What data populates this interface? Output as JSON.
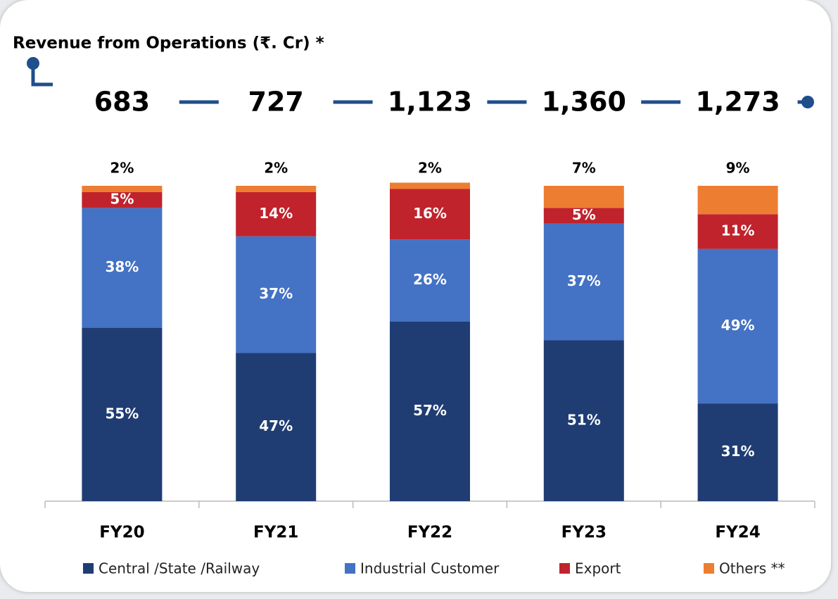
{
  "chart_data": {
    "type": "bar",
    "stacked": true,
    "title": "Revenue from Operations (₹. Cr) *",
    "categories": [
      "FY20",
      "FY21",
      "FY22",
      "FY23",
      "FY24"
    ],
    "revenue": {
      "values": [
        683,
        727,
        1123,
        1360,
        1273
      ],
      "value_labels": [
        "683",
        "727",
        "1,123",
        "1,360",
        "1,273"
      ]
    },
    "series": [
      {
        "name": "Central /State /Railway",
        "color": "#1f3d73",
        "values": [
          55,
          47,
          57,
          51,
          31
        ],
        "value_labels": [
          "55%",
          "47%",
          "57%",
          "51%",
          "31%"
        ]
      },
      {
        "name": "Industrial Customer",
        "color": "#4472c4",
        "values": [
          38,
          37,
          26,
          37,
          49
        ],
        "value_labels": [
          "38%",
          "37%",
          "26%",
          "37%",
          "49%"
        ]
      },
      {
        "name": "Export",
        "color": "#c0232c",
        "values": [
          5,
          14,
          16,
          5,
          11
        ],
        "value_labels": [
          "5%",
          "14%",
          "16%",
          "5%",
          "11%"
        ]
      },
      {
        "name": "Others **",
        "color": "#ed7d31",
        "values": [
          2,
          2,
          2,
          7,
          9
        ],
        "value_labels": [
          "2%",
          "2%",
          "2%",
          "7%",
          "9%"
        ]
      }
    ]
  }
}
